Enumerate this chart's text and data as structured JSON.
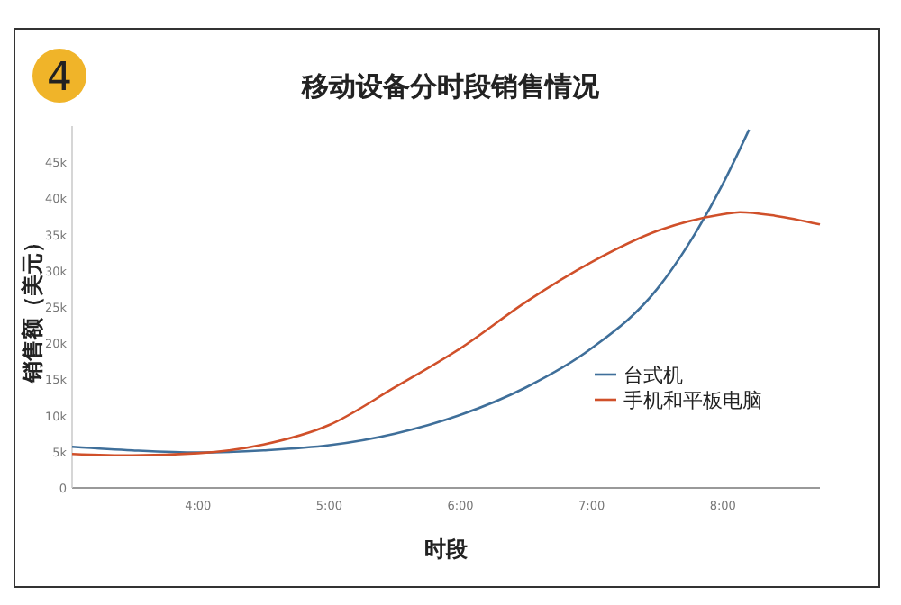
{
  "chart_data": {
    "type": "line",
    "title": "移动设备分时段销售情况",
    "xlabel": "时段",
    "ylabel": "销售额（美元）",
    "annotations": [
      "4"
    ],
    "xlim": [
      3.04,
      8.74
    ],
    "xticks": [
      {
        "value": 4,
        "label": "4:00"
      },
      {
        "value": 5,
        "label": "5:00"
      },
      {
        "value": 6,
        "label": "6:00"
      },
      {
        "value": 7,
        "label": "7:00"
      },
      {
        "value": 8,
        "label": "8:00"
      }
    ],
    "ylim": [
      0,
      50000
    ],
    "yticks": [
      0,
      {
        "value": 5000,
        "label": "5k"
      },
      {
        "value": 10000,
        "label": "10k"
      },
      {
        "value": 15000,
        "label": "15k"
      },
      {
        "value": 20000,
        "label": "20k"
      },
      {
        "value": 25000,
        "label": "25k"
      },
      {
        "value": 30000,
        "label": "30k"
      },
      {
        "value": 35000,
        "label": "35k"
      },
      {
        "value": 40000,
        "label": "40k"
      },
      {
        "value": 45000,
        "label": "45k"
      }
    ],
    "grid": false,
    "legend": "right",
    "marker": "none",
    "line_style": "solid",
    "series": [
      {
        "name": "台式机",
        "color": "#3f6f9a",
        "x": [
          3.04,
          3.5,
          4,
          4.5,
          5,
          5.5,
          6,
          6.5,
          7,
          7.5,
          7.75,
          8,
          8.2
        ],
        "values": [
          5700,
          5200,
          4900,
          5200,
          5900,
          7500,
          10100,
          13900,
          19300,
          27500,
          34000,
          42000,
          49500
        ]
      },
      {
        "name": "手机和平板电脑",
        "color": "#d0502a",
        "x": [
          3.04,
          3.5,
          4,
          4.5,
          5,
          5.5,
          6,
          6.5,
          7,
          7.5,
          8,
          8.13,
          8.4,
          8.74
        ],
        "values": [
          4700,
          4500,
          4800,
          6000,
          8700,
          13900,
          19300,
          25700,
          31200,
          35500,
          37800,
          38100,
          37600,
          36400
        ]
      }
    ]
  }
}
